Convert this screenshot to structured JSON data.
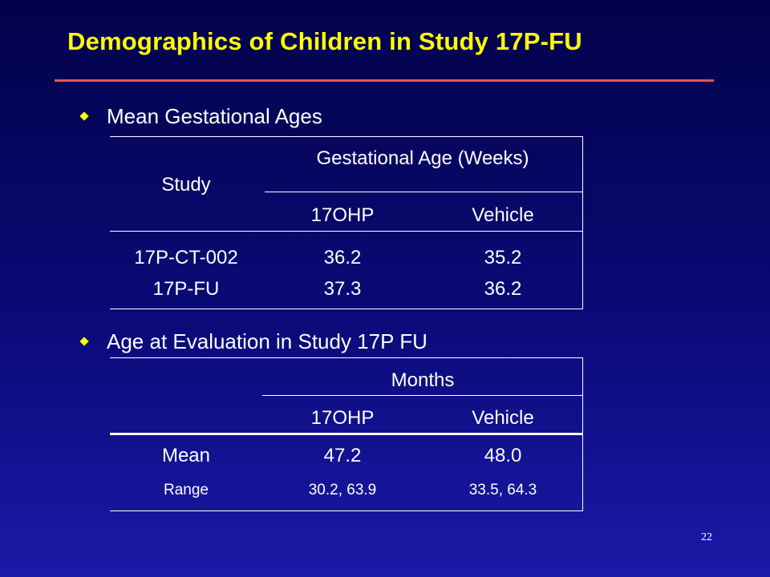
{
  "title": "Demographics of Children in Study 17P-FU",
  "bullets": {
    "first": "Mean Gestational Ages",
    "second": "Age at Evaluation in Study 17P FU"
  },
  "table1": {
    "row_header": "Study",
    "group_header": "Gestational Age (Weeks)",
    "columns": [
      "17OHP",
      "Vehicle"
    ],
    "rows": [
      {
        "label": "17P-CT-002",
        "ohp": "36.2",
        "vehicle": "35.2"
      },
      {
        "label": "17P-FU",
        "ohp": "37.3",
        "vehicle": "36.2"
      }
    ]
  },
  "table2": {
    "group_header": "Months",
    "columns": [
      "17OHP",
      "Vehicle"
    ],
    "rows": [
      {
        "label": "Mean",
        "ohp": "47.2",
        "vehicle": "48.0"
      },
      {
        "label": "Range",
        "ohp": "30.2, 63.9",
        "vehicle": "33.5, 64.3"
      }
    ]
  },
  "page_number": "22",
  "colors": {
    "title": "#ffff00",
    "bullet": "#ffff00",
    "rule": "#e05a5a",
    "background_top": "#02024a",
    "background_bottom": "#1a1aa8"
  }
}
